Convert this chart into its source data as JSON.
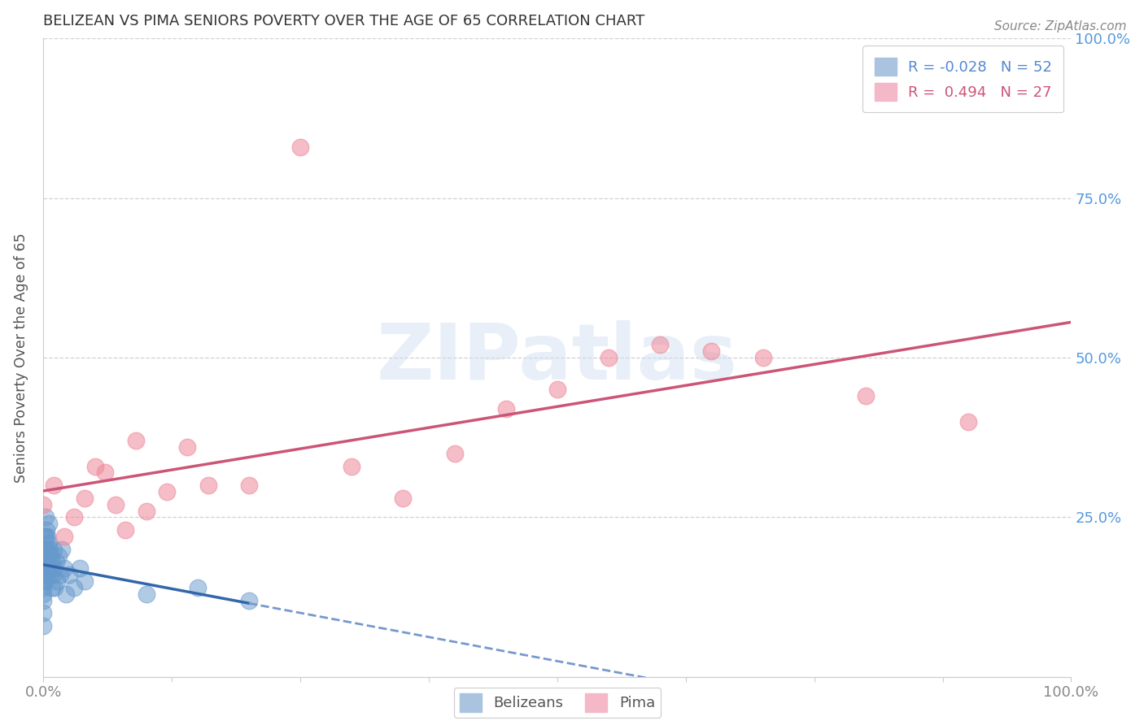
{
  "title": "BELIZEAN VS PIMA SENIORS POVERTY OVER THE AGE OF 65 CORRELATION CHART",
  "source": "Source: ZipAtlas.com",
  "ylabel": "Seniors Poverty Over the Age of 65",
  "watermark": "ZIPatlas",
  "belizean_color": "#6699cc",
  "pima_color": "#ee8899",
  "belizean_R": -0.028,
  "belizean_N": 52,
  "pima_R": 0.494,
  "pima_N": 27,
  "belizean_x": [
    0.0,
    0.0,
    0.0,
    0.0,
    0.0,
    0.0,
    0.0,
    0.0,
    0.0,
    0.0,
    0.001,
    0.001,
    0.001,
    0.001,
    0.001,
    0.002,
    0.002,
    0.002,
    0.002,
    0.003,
    0.003,
    0.003,
    0.004,
    0.004,
    0.004,
    0.005,
    0.005,
    0.005,
    0.006,
    0.006,
    0.007,
    0.007,
    0.008,
    0.008,
    0.009,
    0.01,
    0.01,
    0.011,
    0.012,
    0.013,
    0.015,
    0.016,
    0.018,
    0.02,
    0.022,
    0.025,
    0.03,
    0.035,
    0.04,
    0.1,
    0.15,
    0.2
  ],
  "belizean_y": [
    0.2,
    0.18,
    0.17,
    0.16,
    0.15,
    0.14,
    0.13,
    0.12,
    0.1,
    0.08,
    0.22,
    0.2,
    0.18,
    0.17,
    0.15,
    0.25,
    0.22,
    0.2,
    0.17,
    0.23,
    0.2,
    0.16,
    0.22,
    0.19,
    0.17,
    0.24,
    0.21,
    0.18,
    0.2,
    0.17,
    0.19,
    0.16,
    0.18,
    0.14,
    0.16,
    0.2,
    0.17,
    0.14,
    0.18,
    0.15,
    0.19,
    0.16,
    0.2,
    0.17,
    0.13,
    0.16,
    0.14,
    0.17,
    0.15,
    0.13,
    0.14,
    0.12
  ],
  "pima_x": [
    0.0,
    0.01,
    0.02,
    0.03,
    0.04,
    0.05,
    0.06,
    0.07,
    0.08,
    0.09,
    0.1,
    0.12,
    0.14,
    0.16,
    0.2,
    0.25,
    0.3,
    0.35,
    0.4,
    0.45,
    0.5,
    0.55,
    0.6,
    0.65,
    0.7,
    0.8,
    0.9
  ],
  "pima_y": [
    0.27,
    0.3,
    0.22,
    0.25,
    0.28,
    0.33,
    0.32,
    0.27,
    0.23,
    0.37,
    0.26,
    0.29,
    0.36,
    0.3,
    0.3,
    0.83,
    0.33,
    0.28,
    0.35,
    0.42,
    0.45,
    0.5,
    0.52,
    0.51,
    0.5,
    0.44,
    0.4
  ],
  "bg_color": "#ffffff",
  "grid_color": "#cccccc",
  "title_fontsize": 13,
  "title_color": "#333333",
  "axis_label_color": "#555555",
  "tick_label_color": "#888888",
  "right_tick_color": "#5599dd",
  "xlim": [
    0.0,
    1.0
  ],
  "ylim": [
    0.0,
    1.0
  ],
  "legend_blue_label": "R = -0.028   N = 52",
  "legend_pink_label": "R =  0.494   N = 27"
}
